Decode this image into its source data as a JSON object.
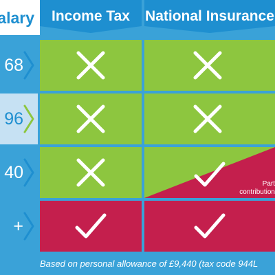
{
  "header": {
    "salary_label": "alary",
    "income_tax_label": "Income Tax",
    "national_insurance_label": "National Insurance"
  },
  "rows": [
    {
      "salary": "68",
      "income_tax": "cross",
      "national_insurance": "cross"
    },
    {
      "salary": "96",
      "income_tax": "cross",
      "national_insurance": "cross"
    },
    {
      "salary": "40",
      "income_tax": "cross",
      "national_insurance": "partial"
    },
    {
      "salary": "+",
      "income_tax": "tick",
      "national_insurance": "tick"
    }
  ],
  "partial_note": {
    "line1": "Part",
    "line2": "contribution"
  },
  "footer": {
    "text": "Based on personal allowance of £9,440 (tax code 944L"
  },
  "colors": {
    "background": "#3aa2d8",
    "header_blue": "#1e8fd0",
    "exempt_green": "#8dc63f",
    "payable_red": "#c41f4d",
    "highlight_row": "#c6e1f3"
  },
  "icons": {
    "cross": "cross-icon",
    "tick": "tick-icon",
    "chevron": "chevron-right-icon"
  }
}
